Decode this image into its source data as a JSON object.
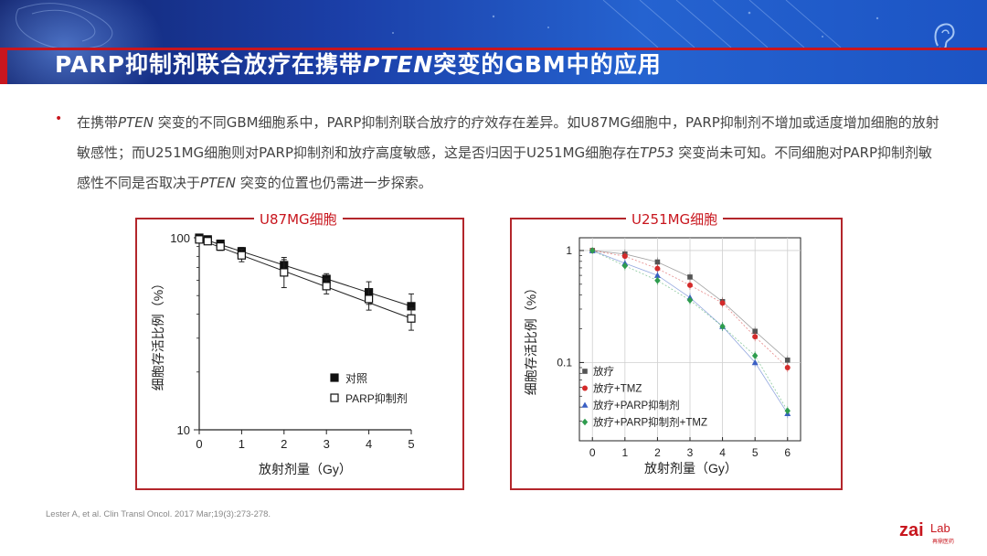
{
  "header": {
    "title_part1": "PARP抑制剂联合放疗在携带",
    "title_italic": "PTEN",
    "title_part2": "突变的GBM中的应用"
  },
  "body_text": {
    "s1": "在携带",
    "s2": "PTEN",
    "s3": " 突变的不同GBM细胞系中，PARP抑制剂联合放疗的疗效存在差异。如U87MG细胞中，PARP抑制剂不增加或适度增加细胞的放射敏感性；而U251MG细胞则对PARP抑制剂和放疗高度敏感，这是否归因于U251MG细胞存在",
    "s4": "TP53",
    "s5": " 突变尚未可知。不同细胞对PARP抑制剂敏感性不同是否取决于",
    "s6": "PTEN",
    "s7": " 突变的位置也仍需进一步探索。"
  },
  "colors": {
    "accent_red": "#c8161e",
    "banner_blue": "#1b3fa8"
  },
  "chart_data": [
    {
      "type": "line",
      "panel_title": "U87MG细胞",
      "xlabel": "放射剂量（Gy）",
      "ylabel": "细胞存活比例（%）",
      "yscale": "log",
      "xlim": [
        0,
        5
      ],
      "ylim": [
        10,
        100
      ],
      "x_ticks": [
        "0",
        "1",
        "2",
        "3",
        "4",
        "5"
      ],
      "y_ticks": [
        "100",
        "10"
      ],
      "legend_position": "bottom-right",
      "series": [
        {
          "name": "对照",
          "marker": "filled-square",
          "x": [
            0,
            0.2,
            0.5,
            1,
            2,
            3,
            4,
            5
          ],
          "y": [
            100,
            98,
            93,
            85,
            72,
            61,
            52,
            44
          ],
          "err": [
            2,
            2,
            3,
            4,
            7,
            4,
            7,
            7
          ]
        },
        {
          "name": "PARP抑制剂",
          "marker": "open-square",
          "x": [
            0,
            0.2,
            0.5,
            1,
            2,
            3,
            4,
            5
          ],
          "y": [
            98,
            96,
            90,
            81,
            66,
            56,
            48,
            38
          ],
          "err": [
            2,
            2,
            4,
            6,
            11,
            5,
            6,
            5
          ]
        }
      ]
    },
    {
      "type": "scatter",
      "panel_title": "U251MG细胞",
      "xlabel": "放射剂量（Gy）",
      "ylabel": "细胞存活比例（%）",
      "yscale": "log",
      "xlim": [
        -0.4,
        6.4
      ],
      "ylim": [
        0.02,
        1.3
      ],
      "x_ticks": [
        "0",
        "1",
        "2",
        "3",
        "4",
        "5",
        "6"
      ],
      "y_ticks": [
        "1",
        "0.1"
      ],
      "grid": true,
      "legend_position": "bottom-left",
      "series": [
        {
          "name": "放疗",
          "color": "#555555",
          "marker": "square",
          "x": [
            0,
            1,
            2,
            3,
            4,
            5,
            6
          ],
          "y": [
            1,
            0.93,
            0.79,
            0.58,
            0.35,
            0.19,
            0.105
          ]
        },
        {
          "name": "放疗+TMZ",
          "color": "#d42a2a",
          "marker": "circle",
          "x": [
            0,
            1,
            2,
            3,
            4,
            5,
            6
          ],
          "y": [
            1,
            0.89,
            0.69,
            0.49,
            0.34,
            0.17,
            0.09
          ]
        },
        {
          "name": "放疗+PARP抑制剂",
          "color": "#3a5fc4",
          "marker": "triangle",
          "x": [
            0,
            1,
            2,
            3,
            4,
            5,
            6
          ],
          "y": [
            1,
            0.77,
            0.6,
            0.38,
            0.21,
            0.1,
            0.035
          ]
        },
        {
          "name": "放疗+PARP抑制剂+TMZ",
          "color": "#2e9c4e",
          "marker": "diamond",
          "x": [
            0,
            1,
            2,
            3,
            4,
            5,
            6
          ],
          "y": [
            1,
            0.73,
            0.54,
            0.36,
            0.21,
            0.115,
            0.037
          ]
        }
      ]
    }
  ],
  "citation": "Lester A, et al. Clin Transl Oncol. 2017 Mar;19(3):273-278.",
  "logo": {
    "text": "zai",
    "suffix": "Lab",
    "sub": "再鼎医药"
  }
}
